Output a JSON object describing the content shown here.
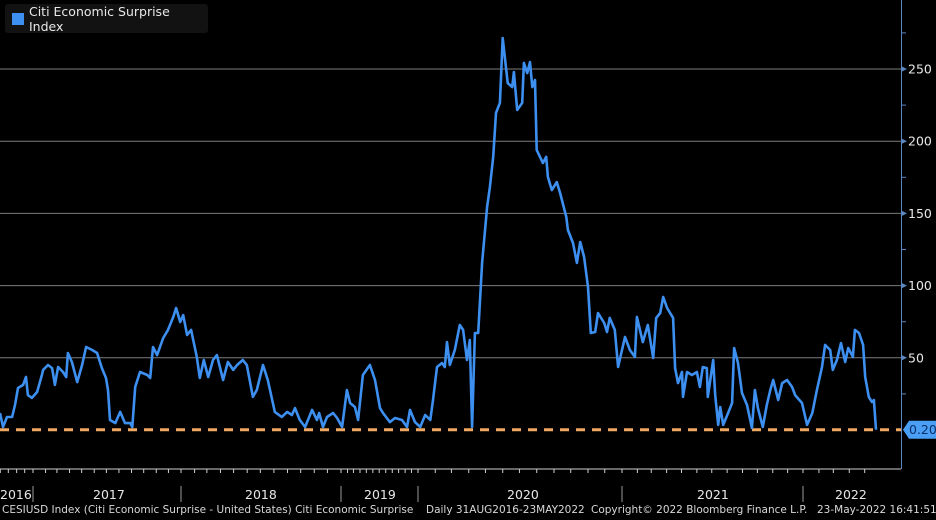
{
  "legend": {
    "label": "Citi Economic Surprise Index",
    "color": "#3d8ff0"
  },
  "footer": {
    "description": "CESIUSD Index (Citi Economic Surprise - United States) Citi Economic Surprise",
    "range": "Daily 31AUG2016-23MAY2022",
    "copyright": "Copyright© 2022 Bloomberg Finance L.P.",
    "timestamp": "23-May-2022 16:41:51"
  },
  "chart_data": {
    "type": "line",
    "title": "",
    "xlabel": "",
    "ylabel": "",
    "y_axis_side": "right",
    "ylim": [
      -25,
      280
    ],
    "yticks": [
      50,
      100,
      150,
      200,
      250
    ],
    "xticks": [
      "2016",
      "2017",
      "2018",
      "2019",
      "2020",
      "2021",
      "2022"
    ],
    "grid": "horizontal",
    "legend_position": "top-left",
    "line_color": "#3d8ff0",
    "last_value": {
      "label": "0.20",
      "value": 0.2,
      "line_color": "#f0a860",
      "style": "dashed"
    },
    "series": [
      {
        "name": "Citi Economic Surprise Index",
        "points": [
          [
            "2016-08-31",
            11.8
          ],
          [
            "2016-09-11",
            2.1
          ],
          [
            "2016-09-26",
            9.0
          ],
          [
            "2016-10-15",
            9.0
          ],
          [
            "2016-10-26",
            17.3
          ],
          [
            "2016-11-06",
            29.1
          ],
          [
            "2016-11-25",
            31.2
          ],
          [
            "2016-12-06",
            36.7
          ],
          [
            "2016-12-13",
            24.2
          ],
          [
            "2016-12-28",
            22.2
          ],
          [
            "2017-01-11",
            26.3
          ],
          [
            "2017-01-23",
            38.1
          ],
          [
            "2017-01-26",
            41.6
          ],
          [
            "2017-02-07",
            45.0
          ],
          [
            "2017-02-17",
            42.9
          ],
          [
            "2017-02-24",
            31.2
          ],
          [
            "2017-03-04",
            43.6
          ],
          [
            "2017-03-16",
            40.2
          ],
          [
            "2017-03-24",
            36.7
          ],
          [
            "2017-03-28",
            53.3
          ],
          [
            "2017-04-07",
            47.1
          ],
          [
            "2017-04-20",
            33.2
          ],
          [
            "2017-05-02",
            45.0
          ],
          [
            "2017-05-12",
            57.5
          ],
          [
            "2017-05-27",
            55.4
          ],
          [
            "2017-06-08",
            53.3
          ],
          [
            "2017-06-20",
            42.9
          ],
          [
            "2017-06-30",
            36.0
          ],
          [
            "2017-07-05",
            27.7
          ],
          [
            "2017-07-10",
            6.9
          ],
          [
            "2017-07-23",
            4.8
          ],
          [
            "2017-08-04",
            12.5
          ],
          [
            "2017-08-16",
            4.8
          ],
          [
            "2017-08-29",
            4.8
          ],
          [
            "2017-09-03",
            2.1
          ],
          [
            "2017-09-10",
            29.8
          ],
          [
            "2017-09-22",
            40.2
          ],
          [
            "2017-10-10",
            38.1
          ],
          [
            "2017-10-17",
            36.0
          ],
          [
            "2017-10-24",
            57.5
          ],
          [
            "2017-11-03",
            51.9
          ],
          [
            "2017-11-18",
            63.7
          ],
          [
            "2017-11-30",
            69.3
          ],
          [
            "2017-12-13",
            78.3
          ],
          [
            "2017-12-20",
            84.5
          ],
          [
            "2017-12-30",
            74.8
          ],
          [
            "2018-01-06",
            79.6
          ],
          [
            "2018-01-15",
            65.8
          ],
          [
            "2018-01-24",
            69.3
          ],
          [
            "2018-01-28",
            63.7
          ],
          [
            "2018-02-06",
            50.6
          ],
          [
            "2018-02-13",
            36.0
          ],
          [
            "2018-02-22",
            48.5
          ],
          [
            "2018-03-04",
            36.7
          ],
          [
            "2018-03-15",
            48.5
          ],
          [
            "2018-03-24",
            51.9
          ],
          [
            "2018-04-07",
            34.6
          ],
          [
            "2018-04-18",
            47.1
          ],
          [
            "2018-04-30",
            41.6
          ],
          [
            "2018-05-09",
            45.0
          ],
          [
            "2018-05-22",
            48.5
          ],
          [
            "2018-05-31",
            45.0
          ],
          [
            "2018-06-14",
            22.9
          ],
          [
            "2018-06-23",
            27.7
          ],
          [
            "2018-07-07",
            45.0
          ],
          [
            "2018-07-18",
            34.6
          ],
          [
            "2018-08-03",
            12.5
          ],
          [
            "2018-08-19",
            9.0
          ],
          [
            "2018-08-31",
            12.5
          ],
          [
            "2018-09-11",
            10.4
          ],
          [
            "2018-09-18",
            15.2
          ],
          [
            "2018-09-29",
            6.9
          ],
          [
            "2018-10-11",
            2.1
          ],
          [
            "2018-10-27",
            13.9
          ],
          [
            "2018-11-07",
            6.9
          ],
          [
            "2018-11-12",
            11.8
          ],
          [
            "2018-11-21",
            2.1
          ],
          [
            "2018-11-30",
            9.0
          ],
          [
            "2018-12-14",
            11.8
          ],
          [
            "2018-12-23",
            8.3
          ],
          [
            "2019-01-06",
            2.1
          ],
          [
            "2019-01-29",
            27.7
          ],
          [
            "2019-02-13",
            18.7
          ],
          [
            "2019-03-08",
            15.9
          ],
          [
            "2019-03-23",
            6.9
          ],
          [
            "2019-04-15",
            38.1
          ],
          [
            "2019-05-18",
            45.0
          ],
          [
            "2019-06-11",
            34.6
          ],
          [
            "2019-07-05",
            15.2
          ],
          [
            "2019-07-19",
            11.8
          ],
          [
            "2019-08-21",
            5.5
          ],
          [
            "2019-09-14",
            8.3
          ],
          [
            "2019-10-17",
            6.9
          ],
          [
            "2019-11-10",
            2.1
          ],
          [
            "2019-11-24",
            13.9
          ],
          [
            "2019-12-18",
            5.5
          ],
          [
            "2020-01-05",
            2.1
          ],
          [
            "2020-01-14",
            10.4
          ],
          [
            "2020-01-23",
            6.9
          ],
          [
            "2020-01-28",
            20.8
          ],
          [
            "2020-02-04",
            43.6
          ],
          [
            "2020-02-13",
            46.4
          ],
          [
            "2020-02-18",
            43.6
          ],
          [
            "2020-02-22",
            60.9
          ],
          [
            "2020-02-27",
            45.0
          ],
          [
            "2020-03-07",
            55.4
          ],
          [
            "2020-03-16",
            72.7
          ],
          [
            "2020-03-22",
            69.3
          ],
          [
            "2020-03-29",
            48.5
          ],
          [
            "2020-04-03",
            62.3
          ],
          [
            "2020-04-07",
            2.1
          ],
          [
            "2020-04-12",
            67.2
          ],
          [
            "2020-04-18",
            67.2
          ],
          [
            "2020-04-25",
            115.7
          ],
          [
            "2020-05-04",
            154.4
          ],
          [
            "2020-05-09",
            168.3
          ],
          [
            "2020-05-15",
            189.1
          ],
          [
            "2020-05-20",
            219.5
          ],
          [
            "2020-05-27",
            226.5
          ],
          [
            "2020-06-01",
            271.5
          ],
          [
            "2020-06-10",
            240.3
          ],
          [
            "2020-06-18",
            237.5
          ],
          [
            "2020-06-21",
            247.9
          ],
          [
            "2020-06-27",
            221.6
          ],
          [
            "2020-07-06",
            226.5
          ],
          [
            "2020-07-09",
            254.2
          ],
          [
            "2020-07-15",
            247.2
          ],
          [
            "2020-07-20",
            254.8
          ],
          [
            "2020-07-24",
            237.5
          ],
          [
            "2020-07-29",
            242.4
          ],
          [
            "2020-08-01",
            193.9
          ],
          [
            "2020-08-12",
            184.9
          ],
          [
            "2020-08-18",
            189.1
          ],
          [
            "2020-08-21",
            175.2
          ],
          [
            "2020-08-28",
            166.2
          ],
          [
            "2020-09-06",
            171.7
          ],
          [
            "2020-09-12",
            164.1
          ],
          [
            "2020-09-23",
            147.5
          ],
          [
            "2020-09-26",
            138.5
          ],
          [
            "2020-10-05",
            129.5
          ],
          [
            "2020-10-12",
            115.7
          ],
          [
            "2020-10-18",
            130.2
          ],
          [
            "2020-10-25",
            119.8
          ],
          [
            "2020-11-01",
            99.0
          ],
          [
            "2020-11-06",
            67.2
          ],
          [
            "2020-11-14",
            67.9
          ],
          [
            "2020-11-19",
            81.0
          ],
          [
            "2020-11-30",
            74.1
          ],
          [
            "2020-12-05",
            67.9
          ],
          [
            "2020-12-10",
            77.6
          ],
          [
            "2020-12-19",
            69.3
          ],
          [
            "2020-12-25",
            43.6
          ],
          [
            "2021-01-07",
            64.4
          ],
          [
            "2021-01-17",
            55.4
          ],
          [
            "2021-01-27",
            50.6
          ],
          [
            "2021-01-31",
            78.3
          ],
          [
            "2021-02-12",
            60.9
          ],
          [
            "2021-02-22",
            72.7
          ],
          [
            "2021-03-05",
            49.9
          ],
          [
            "2021-03-11",
            77.6
          ],
          [
            "2021-03-19",
            81.0
          ],
          [
            "2021-03-25",
            92.1
          ],
          [
            "2021-04-02",
            84.5
          ],
          [
            "2021-04-08",
            81.0
          ],
          [
            "2021-04-14",
            77.6
          ],
          [
            "2021-04-18",
            42.9
          ],
          [
            "2021-04-24",
            32.5
          ],
          [
            "2021-05-02",
            40.2
          ],
          [
            "2021-05-04",
            22.9
          ],
          [
            "2021-05-12",
            40.2
          ],
          [
            "2021-05-22",
            38.1
          ],
          [
            "2021-06-01",
            40.2
          ],
          [
            "2021-06-07",
            29.8
          ],
          [
            "2021-06-13",
            43.6
          ],
          [
            "2021-06-21",
            42.9
          ],
          [
            "2021-06-23",
            22.9
          ],
          [
            "2021-07-04",
            48.5
          ],
          [
            "2021-07-08",
            24.2
          ],
          [
            "2021-07-14",
            3.5
          ],
          [
            "2021-07-18",
            15.9
          ],
          [
            "2021-07-24",
            3.5
          ],
          [
            "2021-08-03",
            11.8
          ],
          [
            "2021-08-11",
            18.7
          ],
          [
            "2021-08-15",
            56.8
          ],
          [
            "2021-08-23",
            46.4
          ],
          [
            "2021-08-31",
            25.6
          ],
          [
            "2021-09-10",
            17.3
          ],
          [
            "2021-09-20",
            1.4
          ],
          [
            "2021-09-26",
            27.7
          ],
          [
            "2021-10-02",
            15.2
          ],
          [
            "2021-10-12",
            2.1
          ],
          [
            "2021-10-20",
            17.3
          ],
          [
            "2021-10-27",
            27.7
          ],
          [
            "2021-11-02",
            34.6
          ],
          [
            "2021-11-12",
            20.8
          ],
          [
            "2021-11-20",
            32.5
          ],
          [
            "2021-11-30",
            34.6
          ],
          [
            "2021-12-10",
            29.8
          ],
          [
            "2021-12-16",
            24.2
          ],
          [
            "2021-12-30",
            18.7
          ],
          [
            "2022-01-09",
            3.5
          ],
          [
            "2022-01-19",
            11.8
          ],
          [
            "2022-01-28",
            27.7
          ],
          [
            "2022-02-07",
            43.6
          ],
          [
            "2022-02-13",
            58.9
          ],
          [
            "2022-02-23",
            55.4
          ],
          [
            "2022-02-28",
            41.6
          ],
          [
            "2022-03-08",
            48.5
          ],
          [
            "2022-03-16",
            60.2
          ],
          [
            "2022-03-24",
            47.1
          ],
          [
            "2022-03-30",
            56.8
          ],
          [
            "2022-04-08",
            50.6
          ],
          [
            "2022-04-12",
            69.3
          ],
          [
            "2022-04-20",
            67.2
          ],
          [
            "2022-04-28",
            58.9
          ],
          [
            "2022-05-02",
            36.7
          ],
          [
            "2022-05-09",
            22.9
          ],
          [
            "2022-05-15",
            19.4
          ],
          [
            "2022-05-19",
            20.8
          ],
          [
            "2022-05-23",
            0.2
          ]
        ]
      }
    ]
  }
}
